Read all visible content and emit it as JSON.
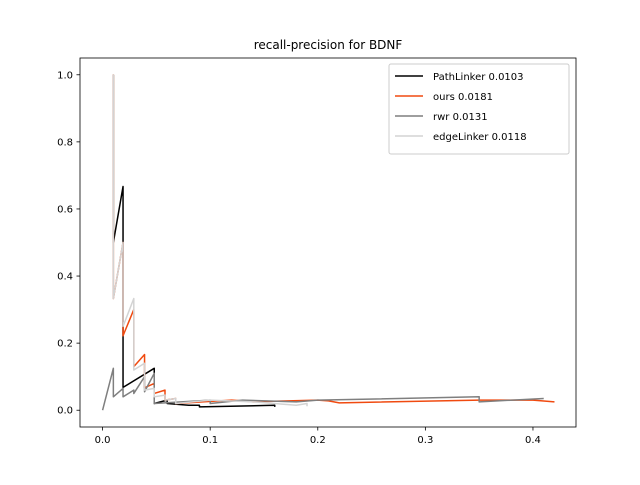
{
  "chart_data": {
    "type": "line",
    "title": "recall-precision for BDNF",
    "xlabel": "",
    "ylabel": "",
    "xlim": [
      -0.021,
      0.44
    ],
    "ylim": [
      -0.05,
      1.05
    ],
    "xticks": [
      0.0,
      0.1,
      0.2,
      0.3,
      0.4
    ],
    "yticks": [
      0.0,
      0.2,
      0.4,
      0.6,
      0.8,
      1.0
    ],
    "xtick_labels": [
      "0.0",
      "0.1",
      "0.2",
      "0.3",
      "0.4"
    ],
    "ytick_labels": [
      "0.0",
      "0.2",
      "0.4",
      "0.6",
      "0.8",
      "1.0"
    ],
    "grid": false,
    "legend_position": "top-right",
    "series": [
      {
        "name": "PathLinker 0.0103",
        "color": "#000000",
        "points": [
          [
            0.01,
            1.0
          ],
          [
            0.01,
            0.5
          ],
          [
            0.019,
            0.667
          ],
          [
            0.019,
            0.5
          ],
          [
            0.019,
            0.068
          ],
          [
            0.048,
            0.125
          ],
          [
            0.048,
            0.02
          ],
          [
            0.06,
            0.03
          ],
          [
            0.06,
            0.02
          ],
          [
            0.08,
            0.015
          ],
          [
            0.09,
            0.015
          ],
          [
            0.09,
            0.01
          ],
          [
            0.15,
            0.014
          ],
          [
            0.16,
            0.015
          ],
          [
            0.16,
            0.01
          ]
        ]
      },
      {
        "name": "ours 0.0181",
        "color": "#f04a10",
        "points": [
          [
            0.01,
            1.0
          ],
          [
            0.01,
            0.333
          ],
          [
            0.019,
            0.5
          ],
          [
            0.019,
            0.222
          ],
          [
            0.029,
            0.3
          ],
          [
            0.029,
            0.13
          ],
          [
            0.039,
            0.166
          ],
          [
            0.039,
            0.067
          ],
          [
            0.048,
            0.08
          ],
          [
            0.048,
            0.05
          ],
          [
            0.058,
            0.06
          ],
          [
            0.058,
            0.03
          ],
          [
            0.068,
            0.035
          ],
          [
            0.068,
            0.02
          ],
          [
            0.12,
            0.03
          ],
          [
            0.13,
            0.028
          ],
          [
            0.14,
            0.025
          ],
          [
            0.15,
            0.026
          ],
          [
            0.2,
            0.03
          ],
          [
            0.21,
            0.028
          ],
          [
            0.22,
            0.022
          ],
          [
            0.35,
            0.03
          ],
          [
            0.4,
            0.03
          ],
          [
            0.42,
            0.025
          ]
        ]
      },
      {
        "name": "rwr 0.0131",
        "color": "#7f7f7f",
        "points": [
          [
            0.0,
            0.0
          ],
          [
            0.01,
            0.125
          ],
          [
            0.01,
            0.04
          ],
          [
            0.019,
            0.065
          ],
          [
            0.019,
            0.04
          ],
          [
            0.029,
            0.06
          ],
          [
            0.029,
            0.05
          ],
          [
            0.039,
            0.1
          ],
          [
            0.039,
            0.055
          ],
          [
            0.048,
            0.11
          ],
          [
            0.048,
            0.02
          ],
          [
            0.1,
            0.03
          ],
          [
            0.1,
            0.02
          ],
          [
            0.13,
            0.03
          ],
          [
            0.18,
            0.025
          ],
          [
            0.2,
            0.03
          ],
          [
            0.35,
            0.04
          ],
          [
            0.35,
            0.025
          ],
          [
            0.41,
            0.035
          ]
        ]
      },
      {
        "name": "edgeLinker 0.0118",
        "color": "#d3d3d3",
        "points": [
          [
            0.01,
            1.0
          ],
          [
            0.01,
            0.333
          ],
          [
            0.019,
            0.5
          ],
          [
            0.019,
            0.25
          ],
          [
            0.029,
            0.333
          ],
          [
            0.029,
            0.12
          ],
          [
            0.039,
            0.14
          ],
          [
            0.039,
            0.06
          ],
          [
            0.048,
            0.065
          ],
          [
            0.048,
            0.04
          ],
          [
            0.058,
            0.045
          ],
          [
            0.058,
            0.03
          ],
          [
            0.068,
            0.035
          ],
          [
            0.068,
            0.02
          ],
          [
            0.1,
            0.03
          ],
          [
            0.14,
            0.025
          ],
          [
            0.18,
            0.015
          ],
          [
            0.19,
            0.02
          ],
          [
            0.19,
            0.012
          ]
        ]
      }
    ]
  }
}
